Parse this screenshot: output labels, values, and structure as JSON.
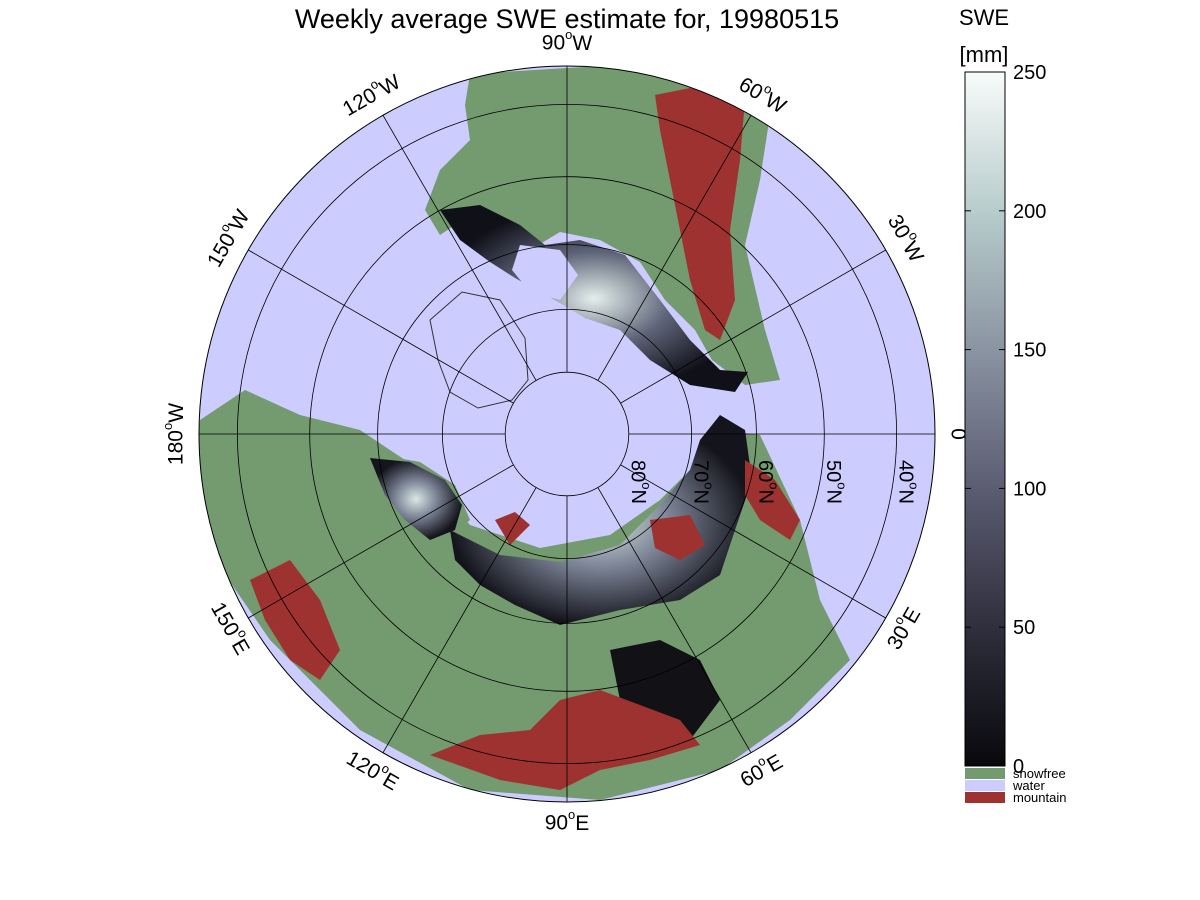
{
  "map": {
    "title": "Weekly average SWE estimate for, 19980515",
    "projection": "north polar stereographic",
    "longitude_labels": [
      {
        "lon": 90,
        "label": "90°W",
        "deg": "90",
        "hemi": "W"
      },
      {
        "lon": 120,
        "label": "120°W",
        "deg": "120",
        "hemi": "W"
      },
      {
        "lon": 150,
        "label": "150°W",
        "deg": "150",
        "hemi": "W"
      },
      {
        "lon": 180,
        "label": "180°W",
        "deg": "180",
        "hemi": "W"
      },
      {
        "lon": 210,
        "label": "150°E",
        "deg": "150",
        "hemi": "E"
      },
      {
        "lon": 240,
        "label": "120°E",
        "deg": "120",
        "hemi": "E"
      },
      {
        "lon": 270,
        "label": "90°E",
        "deg": "90",
        "hemi": "E"
      },
      {
        "lon": 300,
        "label": "60°E",
        "deg": "60",
        "hemi": "E"
      },
      {
        "lon": 330,
        "label": "30°E",
        "deg": "30",
        "hemi": "E"
      },
      {
        "lon": 0,
        "label": "0",
        "deg": "0",
        "hemi": ""
      },
      {
        "lon": 30,
        "label": "30°W",
        "deg": "30",
        "hemi": "W"
      },
      {
        "lon": 60,
        "label": "60°W",
        "deg": "60",
        "hemi": "W"
      }
    ],
    "latitude_labels": [
      {
        "lat": 80,
        "label": "80°N",
        "deg": "80",
        "hemi": "N"
      },
      {
        "lat": 70,
        "label": "70°N",
        "deg": "70",
        "hemi": "N"
      },
      {
        "lat": 60,
        "label": "60°N",
        "deg": "60",
        "hemi": "N"
      },
      {
        "lat": 50,
        "label": "50°N",
        "deg": "50",
        "hemi": "N"
      },
      {
        "lat": 40,
        "label": "40°N",
        "deg": "40",
        "hemi": "N"
      }
    ],
    "colors": {
      "ocean": "#ccccfe",
      "snowfree": "#749a6f",
      "mountain": "#9e3230",
      "grid": "#000000"
    }
  },
  "colorbar": {
    "label_line1": "SWE",
    "label_line2": "[mm]",
    "min": 0,
    "max": 250,
    "ticks": [
      "0",
      "50",
      "100",
      "150",
      "200",
      "250"
    ],
    "gradient": [
      "#08080c",
      "#2f2f3d",
      "#5c5c72",
      "#8a94a2",
      "#b8cccc",
      "#f8fbfa"
    ],
    "categories": [
      {
        "label": "snowfree",
        "color": "#749a6f"
      },
      {
        "label": "water",
        "color": "#ccccfe"
      },
      {
        "label": "mountain",
        "color": "#9e3230"
      }
    ]
  }
}
